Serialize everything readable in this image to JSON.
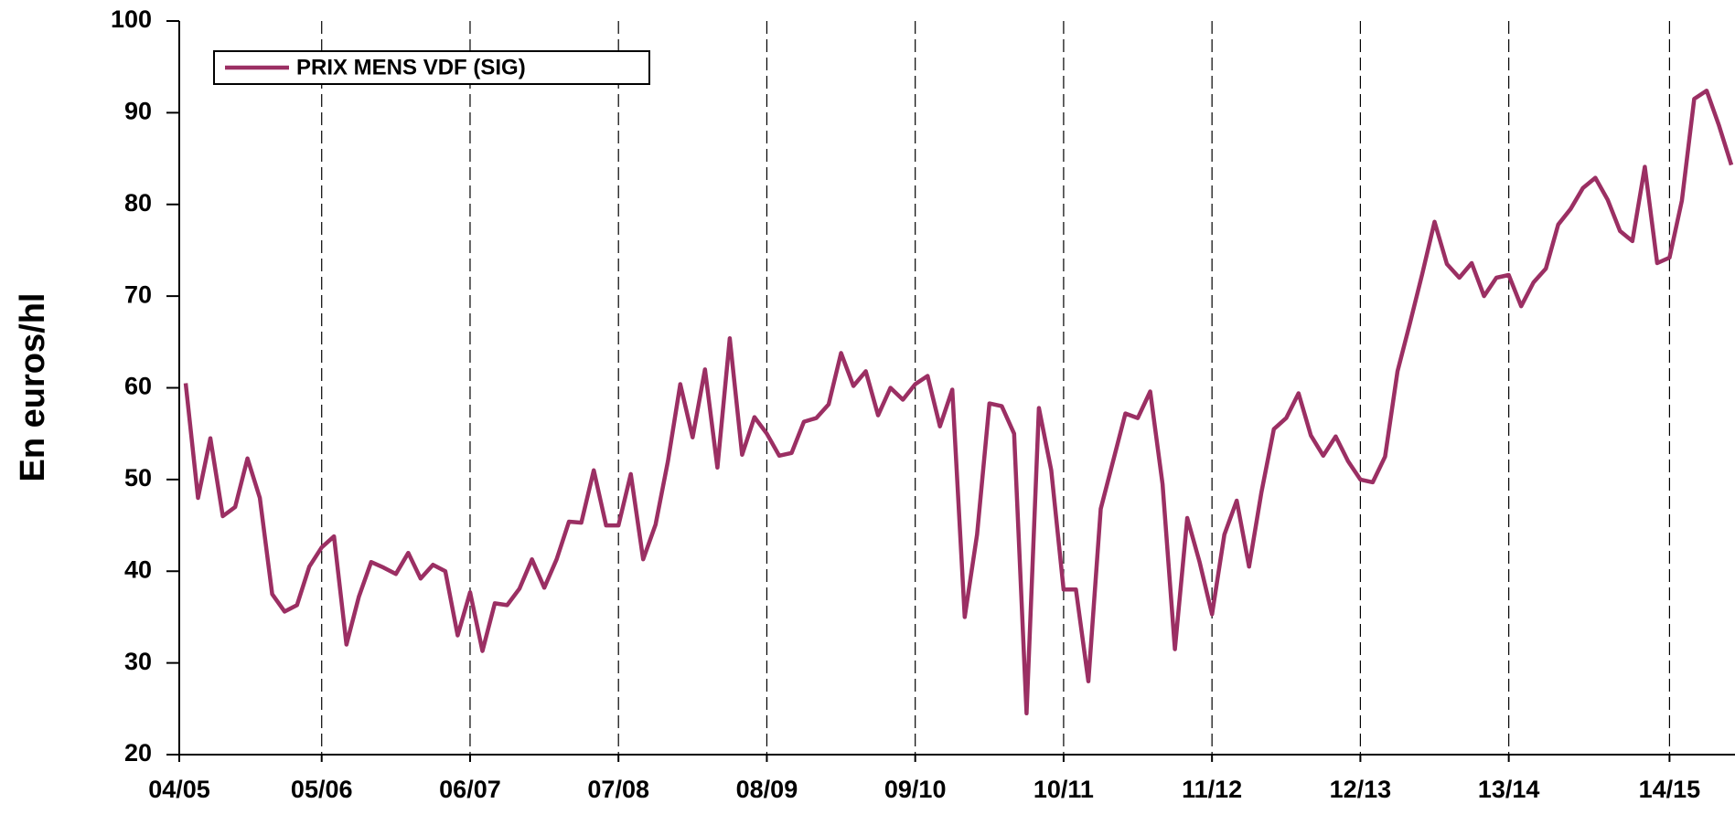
{
  "chart_data": {
    "type": "line",
    "ylabel": "En euros/hl",
    "categories": [
      "04/05",
      null,
      null,
      null,
      null,
      null,
      null,
      null,
      null,
      null,
      null,
      "05/06",
      null,
      null,
      null,
      null,
      null,
      null,
      null,
      null,
      null,
      null,
      null,
      "06/07",
      null,
      null,
      null,
      null,
      null,
      null,
      null,
      null,
      null,
      null,
      null,
      "07/08",
      null,
      null,
      null,
      null,
      null,
      null,
      null,
      null,
      null,
      null,
      null,
      "08/09",
      null,
      null,
      null,
      null,
      null,
      null,
      null,
      null,
      null,
      null,
      null,
      "09/10",
      null,
      null,
      null,
      null,
      null,
      null,
      null,
      null,
      null,
      null,
      null,
      "10/11",
      null,
      null,
      null,
      null,
      null,
      null,
      null,
      null,
      null,
      null,
      null,
      "11/12",
      null,
      null,
      null,
      null,
      null,
      null,
      null,
      null,
      null,
      null,
      null,
      "12/13",
      null,
      null,
      null,
      null,
      null,
      null,
      null,
      null,
      null,
      null,
      null,
      "13/14",
      null,
      null,
      null,
      null,
      null,
      null,
      null,
      null,
      null,
      null,
      null,
      null,
      "14/15",
      null,
      null,
      null,
      null,
      null
    ],
    "series": [
      {
        "name": "PRIX MENS VDF (SIG)",
        "color": "#9b2f63",
        "values": [
          60.5,
          48,
          54.5,
          46,
          47,
          52.3,
          48,
          37.5,
          35.6,
          36.3,
          40.5,
          42.6,
          43.8,
          32,
          37.2,
          41,
          40.4,
          39.7,
          42,
          39.2,
          40.7,
          40,
          33,
          37.7,
          31.3,
          36.5,
          36.3,
          38.1,
          41.3,
          38.2,
          41.3,
          45.4,
          45.3,
          51,
          45,
          45,
          50.6,
          41.3,
          45.1,
          52,
          60.4,
          54.6,
          62,
          51.3,
          65.4,
          52.7,
          56.8,
          55,
          52.6,
          52.9,
          56.3,
          56.7,
          58.2,
          63.8,
          60.2,
          61.8,
          57,
          60,
          58.7,
          60.4,
          61.3,
          55.8,
          59.8,
          35,
          44,
          58.3,
          58,
          55,
          24.5,
          57.8,
          51,
          38,
          38,
          28,
          46.8,
          52,
          57.2,
          56.7,
          59.6,
          49.5,
          31.5,
          45.8,
          41,
          35.3,
          44,
          47.7,
          40.5,
          48.6,
          55.5,
          56.7,
          59.4,
          54.8,
          52.6,
          54.7,
          52,
          50,
          49.7,
          52.5,
          61.8,
          67,
          72.4,
          78.1,
          73.5,
          72,
          73.6,
          70,
          72,
          72.3,
          68.9,
          71.5,
          73,
          77.8,
          79.5,
          81.8,
          82.9,
          80.5,
          77.1,
          76,
          84.1,
          73.6,
          74.2,
          80.4,
          91.5,
          92.4,
          88.6,
          84.3
        ]
      }
    ],
    "ylim": [
      20,
      100
    ],
    "yticks": [
      20,
      30,
      40,
      50,
      60,
      70,
      80,
      90,
      100
    ],
    "grid": "x",
    "legend": "upper left"
  }
}
